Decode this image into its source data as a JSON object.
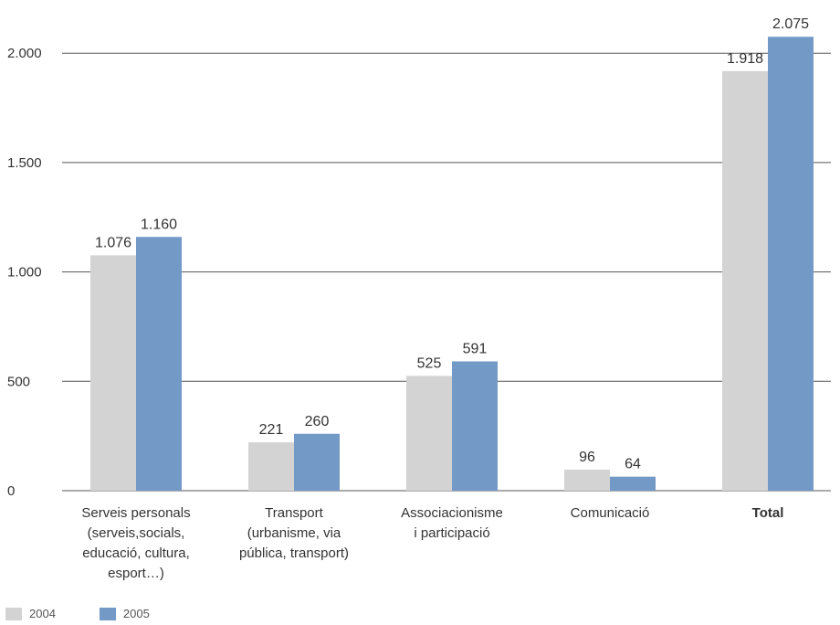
{
  "chart_data": {
    "type": "bar",
    "categories": [
      [
        "Serveis personals",
        "(serveis,socials,",
        "educació, cultura,",
        "esport…)"
      ],
      [
        "Transport",
        "(urbanisme, via",
        "pública, transport)"
      ],
      [
        "Associacionisme",
        "i participació"
      ],
      [
        "Comunicació"
      ],
      [
        "Total"
      ]
    ],
    "bold_categories": [
      4
    ],
    "series": [
      {
        "name": "2004",
        "color": "#d3d3d3",
        "values": [
          1076,
          221,
          525,
          96,
          1918
        ],
        "labels": [
          "1.076",
          "221",
          "525",
          "96",
          "1.918"
        ]
      },
      {
        "name": "2005",
        "color": "#7399c6",
        "values": [
          1160,
          260,
          591,
          64,
          2075
        ],
        "labels": [
          "1.160",
          "260",
          "591",
          "64",
          "2.075"
        ]
      }
    ],
    "ylim": [
      0,
      2200
    ],
    "yticks": [
      0,
      500,
      1000,
      1500,
      2000
    ],
    "ytick_labels": [
      "0",
      "500",
      "1.000",
      "1.500",
      "2.000"
    ],
    "grid": true,
    "legend_position": "bottom-left"
  }
}
